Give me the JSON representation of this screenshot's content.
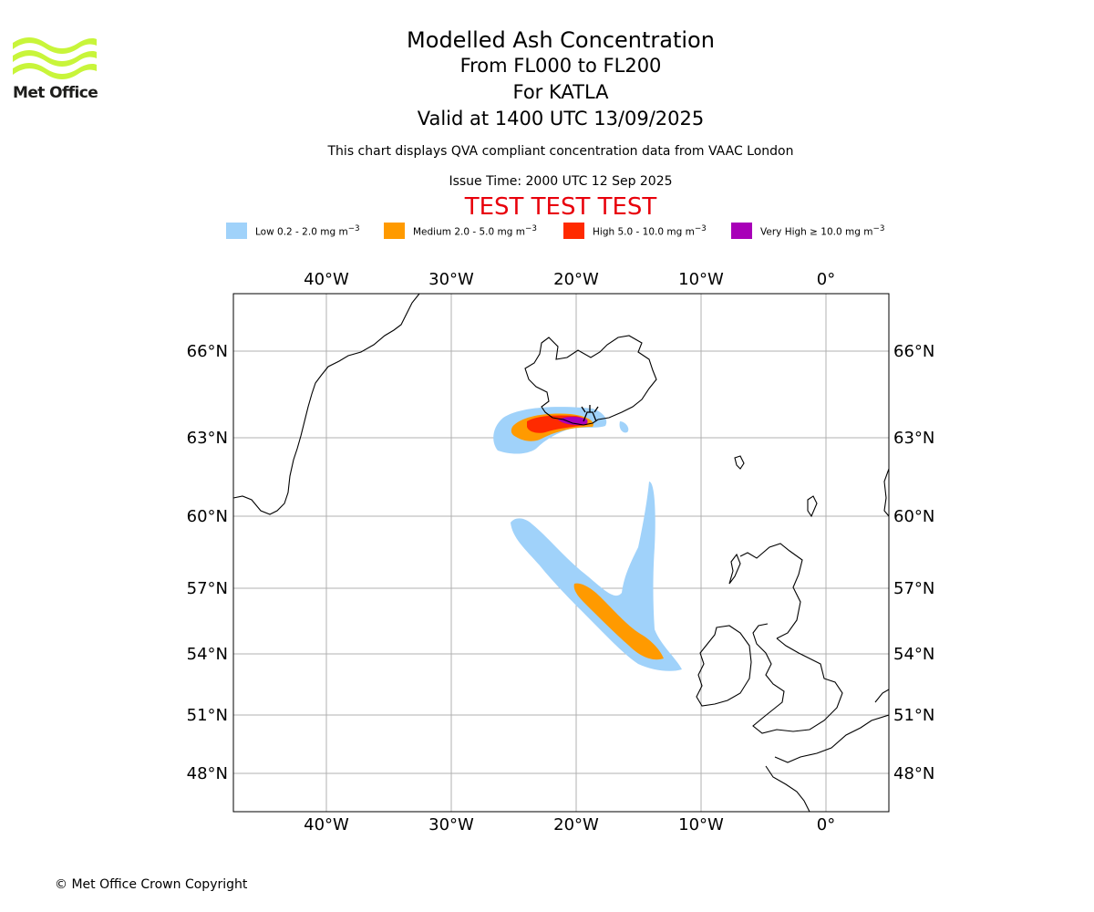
{
  "header": {
    "logo_text": "Met Office",
    "title": "Modelled Ash Concentration",
    "levels": "From FL000 to FL200",
    "volcano": "For KATLA",
    "valid": "Valid at 1400 UTC 13/09/2025",
    "subtitle": "This chart displays QVA compliant concentration data from VAAC London",
    "issue_time": "Issue Time: 2000 UTC 12 Sep 2025",
    "test_banner": "TEST TEST TEST"
  },
  "colors": {
    "logo": "#c8f53a",
    "test_banner": "#e8000b",
    "low": "#a0d2fa",
    "medium": "#ff9a00",
    "high": "#ff2a00",
    "very_high": "#a800b8",
    "grid": "#b0b0b0",
    "coast": "#000000"
  },
  "legend": [
    {
      "key": "low",
      "prefix": "Low 0.2 - 2.0 mg m",
      "exp": "−3"
    },
    {
      "key": "medium",
      "prefix": "Medium 2.0 - 5.0 mg m",
      "exp": "−3"
    },
    {
      "key": "high",
      "prefix": "High 5.0 - 10.0 mg m",
      "exp": "−3"
    },
    {
      "key": "very_high",
      "prefix": "Very High  ≥  10.0 mg m",
      "exp": "−3"
    }
  ],
  "map": {
    "lon_labels": [
      "40°W",
      "30°W",
      "20°W",
      "10°W",
      "0°"
    ],
    "lat_labels": [
      "66°N",
      "63°N",
      "60°N",
      "57°N",
      "54°N",
      "51°N",
      "48°N"
    ],
    "volcano_marker": "volcano-icon"
  },
  "footer": {
    "copyright": "© Met Office Crown Copyright"
  }
}
